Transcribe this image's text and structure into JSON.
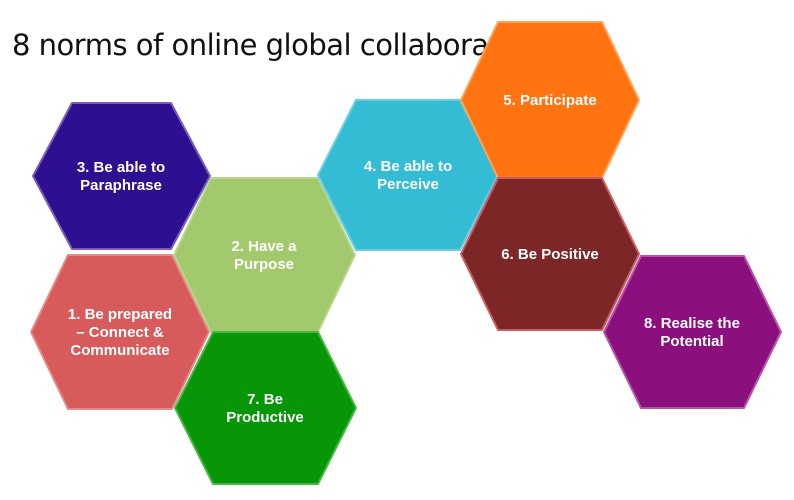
{
  "title": "8 norms of online global collaboration",
  "norms": [
    {
      "lines": [
        "3. Be able to",
        "Paraphrase"
      ],
      "fill": "#2d0f8f",
      "stroke": "#7a5cb8"
    },
    {
      "lines": [
        "2. Have a",
        "Purpose"
      ],
      "fill": "#a2c96b",
      "stroke": "#b9d88f"
    },
    {
      "lines": [
        "4. Be able to",
        "Perceive"
      ],
      "fill": "#33bcd3",
      "stroke": "#69cfe0"
    },
    {
      "lines": [
        "5. Participate"
      ],
      "fill": "#ff7310",
      "stroke": "#ffa25a"
    },
    {
      "lines": [
        "6. Be Positive"
      ],
      "fill": "#7d2628",
      "stroke": "#c85e62"
    },
    {
      "lines": [
        "1. Be prepared",
        "– Connect &",
        "Communicate"
      ],
      "fill": "#d65b5a",
      "stroke": "#e48a89"
    },
    {
      "lines": [
        "7. Be",
        "Productive"
      ],
      "fill": "#079607",
      "stroke": "#48b748"
    },
    {
      "lines": [
        "8. Realise the",
        "Potential"
      ],
      "fill": "#8b0f7d",
      "stroke": "#b257a8"
    }
  ]
}
